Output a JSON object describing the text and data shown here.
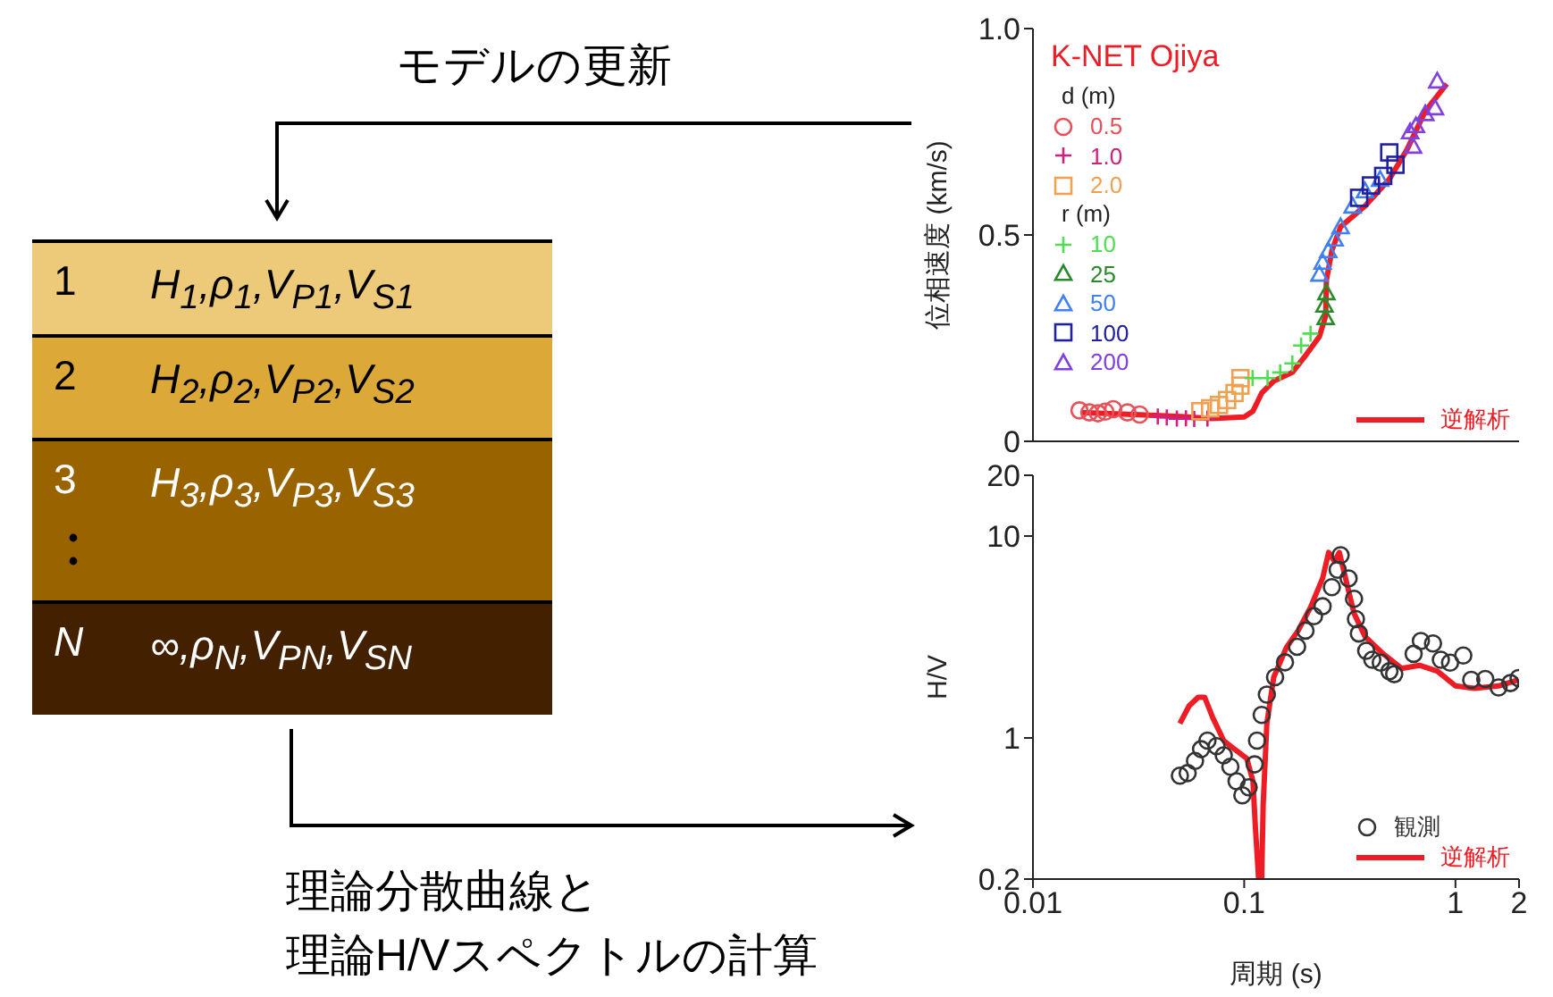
{
  "chart_data": [
    {
      "type": "other",
      "categories": [
        "1",
        "2",
        "3",
        "N"
      ],
      "colors": [
        "#edc97a",
        "#dca838",
        "#996300",
        "#432100"
      ],
      "annotations": [
        "H$_{1}$,ρ$_{1}$,V$_{P1}$,V$_{S1}$",
        "H$_{2}$,ρ$_{2}$,V$_{P2}$,V$_{S2}$",
        "H$_{3}$,ρ$_{3}$,V$_{P3}$,V$_{S3}$",
        "∞,ρ$_{N}$,V$_{PN}$,V$_{SN}$",
        "モデルの更新",
        "理論分散曲線と",
        "理論H/Vスペクトルの計算"
      ]
    },
    {
      "type": "scatter",
      "ylabel": "位相速度 (km/s)",
      "legend_title": "d (m)",
      "annotations": [
        "K-NET Ojiya",
        "r (m)"
      ],
      "log": "x",
      "xlim": [
        0.01,
        2
      ],
      "xticks": [
        0.01,
        0.1,
        1
      ],
      "ylim": [
        0,
        1
      ],
      "yticks": [
        0,
        0.5,
        {
          "value": 1,
          "label": "1.0"
        }
      ],
      "tick_labels": "y",
      "legend": "bottom right",
      "series": [
        {
          "name": "0.5",
          "color": "#e8505a",
          "marker": "circle",
          "x": [
            0.0166,
            0.0185,
            0.0203,
            0.022,
            0.024,
            0.028,
            0.032
          ],
          "values": [
            0.075,
            0.07,
            0.068,
            0.072,
            0.078,
            0.07,
            0.065
          ]
        },
        {
          "name": "1.0",
          "color": "#d0207a",
          "marker": "cross",
          "x": [
            0.039,
            0.043,
            0.048,
            0.053,
            0.058,
            0.067
          ],
          "values": [
            0.06,
            0.058,
            0.055,
            0.056,
            0.054,
            0.055
          ]
        },
        {
          "name": "2.0",
          "color": "#f0a050",
          "marker": "square",
          "x": [
            0.062,
            0.069,
            0.076,
            0.083,
            0.09,
            0.096,
            0.096
          ],
          "values": [
            0.073,
            0.08,
            0.088,
            0.1,
            0.117,
            0.135,
            0.153
          ]
        },
        {
          "name": "10",
          "color": "#50dd50",
          "marker": "cross",
          "x": [
            0.1096,
            0.129,
            0.148,
            0.169,
            0.186,
            0.206
          ],
          "values": [
            0.153,
            0.153,
            0.167,
            0.189,
            0.232,
            0.261
          ]
        },
        {
          "name": "25",
          "color": "#2a8a2a",
          "marker": "triangle",
          "x": [
            0.243,
            0.24,
            0.245
          ],
          "values": [
            0.3,
            0.33,
            0.36
          ]
        },
        {
          "name": "50",
          "color": "#4080f0",
          "marker": "triangle",
          "x": [
            0.227,
            0.235,
            0.25,
            0.268,
            0.286,
            0.326,
            0.373,
            0.44
          ],
          "values": [
            0.405,
            0.434,
            0.462,
            0.49,
            0.52,
            0.57,
            0.607,
            0.635
          ]
        },
        {
          "name": "100",
          "color": "#2020a0",
          "marker": "square",
          "x": [
            0.35,
            0.398,
            0.455,
            0.52,
            0.486
          ],
          "values": [
            0.59,
            0.62,
            0.643,
            0.67,
            0.7
          ]
        },
        {
          "name": "200",
          "color": "#8040e0",
          "marker": "triangle",
          "x": [
            0.61,
            0.63,
            0.65,
            0.72,
            0.8,
            0.82
          ],
          "values": [
            0.75,
            0.715,
            0.765,
            0.794,
            0.808,
            0.873
          ]
        },
        {
          "name": "逆解析",
          "type": "line",
          "color": "#ee1c24",
          "marker": "none",
          "line_style": "solid",
          "x": [
            0.017,
            0.03,
            0.05,
            0.07,
            0.1,
            0.11,
            0.121,
            0.138,
            0.169,
            0.192,
            0.227,
            0.243,
            0.245,
            0.26,
            0.286,
            0.373,
            0.486,
            0.59,
            0.72,
            0.91
          ],
          "values": [
            0.07,
            0.065,
            0.06,
            0.055,
            0.059,
            0.073,
            0.117,
            0.146,
            0.167,
            0.203,
            0.254,
            0.304,
            0.39,
            0.462,
            0.52,
            0.57,
            0.635,
            0.707,
            0.8,
            0.866
          ]
        }
      ]
    },
    {
      "type": "scatter",
      "xlabel": "周期 (s)",
      "ylabel": "H/V",
      "log": "xy",
      "xlim": [
        0.01,
        2
      ],
      "xticks": [
        0.01,
        0.1,
        1,
        2
      ],
      "ylim": [
        0.2,
        20
      ],
      "yticks": [
        0.2,
        1,
        10,
        20
      ],
      "legend": "bottom right",
      "series": [
        {
          "name": "観測",
          "color": "#333333",
          "marker": "circle",
          "x": [
            0.0496,
            0.054,
            0.0585,
            0.0625,
            0.067,
            0.074,
            0.08,
            0.086,
            0.092,
            0.098,
            0.105,
            0.112,
            0.115,
            0.121,
            0.128,
            0.14,
            0.156,
            0.178,
            0.195,
            0.214,
            0.235,
            0.26,
            0.277,
            0.286,
            0.312,
            0.331,
            0.338,
            0.349,
            0.378,
            0.404,
            0.443,
            0.487,
            0.513,
            0.634,
            0.686,
            0.783,
            0.853,
            0.943,
            1.089,
            1.188,
            1.384,
            1.6,
            1.82,
            1.99
          ],
          "values": [
            0.65,
            0.67,
            0.77,
            0.88,
            0.97,
            0.91,
            0.82,
            0.72,
            0.61,
            0.52,
            0.57,
            0.74,
            0.97,
            1.3,
            1.64,
            2.0,
            2.37,
            2.83,
            3.4,
            4.01,
            4.49,
            5.58,
            6.81,
            8.04,
            6.17,
            4.89,
            3.88,
            3.29,
            2.7,
            2.44,
            2.36,
            2.14,
            2.07,
            2.61,
            3.02,
            2.94,
            2.44,
            2.36,
            2.56,
            1.94,
            1.96,
            1.78,
            1.87,
            1.98
          ]
        },
        {
          "name": "逆解析",
          "type": "line",
          "color": "#ee1c24",
          "marker": "none",
          "line_style": "solid",
          "x": [
            0.0496,
            0.0548,
            0.0605,
            0.065,
            0.071,
            0.08,
            0.09,
            0.103,
            0.11,
            0.113,
            0.117,
            0.121,
            0.123,
            0.128,
            0.138,
            0.158,
            0.18,
            0.206,
            0.235,
            0.251,
            0.268,
            0.282,
            0.302,
            0.331,
            0.373,
            0.455,
            0.556,
            0.675,
            0.823,
            1.0,
            1.23,
            1.6,
            1.99
          ],
          "values": [
            1.18,
            1.44,
            1.59,
            1.59,
            1.26,
            0.97,
            0.88,
            0.79,
            0.61,
            0.36,
            0.2,
            0.2,
            0.47,
            1.18,
            2.0,
            2.79,
            3.4,
            4.43,
            6.17,
            8.3,
            7.5,
            8.3,
            6.17,
            4.15,
            3.18,
            2.61,
            2.21,
            2.29,
            2.14,
            1.81,
            1.76,
            1.81,
            1.94
          ]
        }
      ]
    }
  ]
}
